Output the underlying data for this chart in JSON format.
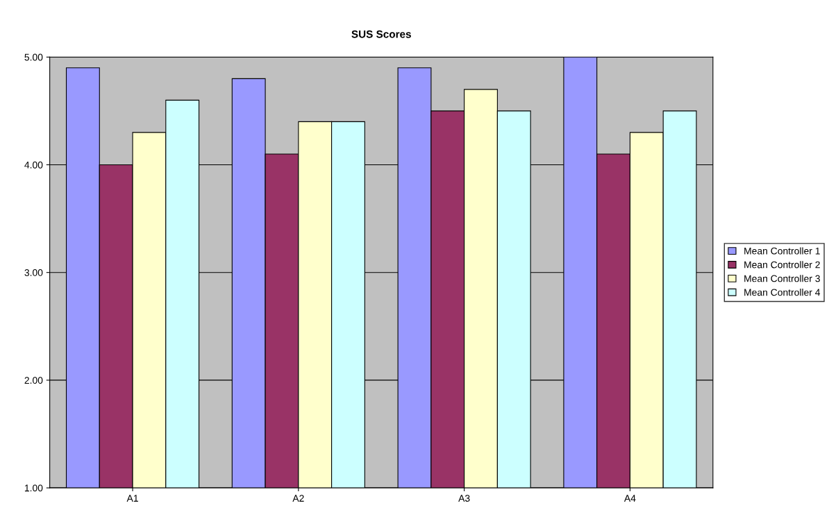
{
  "chart_data": {
    "type": "bar",
    "title": "SUS Scores",
    "categories": [
      "A1",
      "A2",
      "A3",
      "A4"
    ],
    "series": [
      {
        "name": "Mean Controller 1",
        "color": "#9999ff",
        "values": [
          4.9,
          4.8,
          4.9,
          5.0
        ]
      },
      {
        "name": "Mean Controller 2",
        "color": "#993366",
        "values": [
          4.0,
          4.1,
          4.5,
          4.1
        ]
      },
      {
        "name": "Mean Controller 3",
        "color": "#ffffcc",
        "values": [
          4.3,
          4.4,
          4.7,
          4.3
        ]
      },
      {
        "name": "Mean Controller 4",
        "color": "#ccffff",
        "values": [
          4.6,
          4.4,
          4.5,
          4.5
        ]
      }
    ],
    "ylim": [
      1,
      5
    ],
    "yticks": [
      {
        "value": 1,
        "label": "1.00"
      },
      {
        "value": 2,
        "label": "2.00"
      },
      {
        "value": 3,
        "label": "3.00"
      },
      {
        "value": 4,
        "label": "4.00"
      },
      {
        "value": 5,
        "label": "5.00"
      }
    ],
    "grid": "y",
    "legend": "right"
  }
}
